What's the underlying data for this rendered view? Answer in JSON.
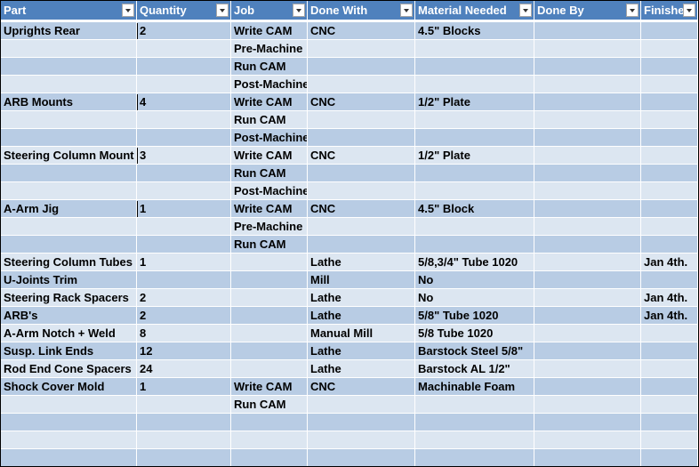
{
  "columns": [
    {
      "label": "Part"
    },
    {
      "label": "Quantity"
    },
    {
      "label": "Job"
    },
    {
      "label": "Done With"
    },
    {
      "label": "Material Needed"
    },
    {
      "label": "Done By"
    },
    {
      "label": "Finished"
    }
  ],
  "rows": [
    [
      "Uprights Rear",
      "2",
      "Write CAM",
      "CNC",
      "4.5\" Blocks",
      "",
      ""
    ],
    [
      "",
      "",
      "Pre-Machine",
      "",
      "",
      "",
      ""
    ],
    [
      "",
      "",
      "Run CAM",
      "",
      "",
      "",
      ""
    ],
    [
      "",
      "",
      "Post-Machine",
      "",
      "",
      "",
      ""
    ],
    [
      "ARB Mounts",
      "4",
      "Write CAM",
      "CNC",
      "1/2\" Plate",
      "",
      ""
    ],
    [
      "",
      "",
      "Run CAM",
      "",
      "",
      "",
      ""
    ],
    [
      "",
      "",
      "Post-Machine",
      "",
      "",
      "",
      ""
    ],
    [
      "Steering Column Mount",
      "3",
      "Write CAM",
      "CNC",
      "1/2\" Plate",
      "",
      ""
    ],
    [
      "",
      "",
      "Run CAM",
      "",
      "",
      "",
      ""
    ],
    [
      "",
      "",
      "Post-Machine",
      "",
      "",
      "",
      ""
    ],
    [
      "A-Arm Jig",
      "1",
      "Write CAM",
      "CNC",
      "4.5\" Block",
      "",
      ""
    ],
    [
      "",
      "",
      "Pre-Machine",
      "",
      "",
      "",
      ""
    ],
    [
      "",
      "",
      "Run CAM",
      "",
      "",
      "",
      ""
    ],
    [
      "Steering Column Tubes",
      "1",
      "",
      "Lathe",
      "5/8,3/4\" Tube 1020",
      "",
      "Jan 4th."
    ],
    [
      "U-Joints Trim",
      "",
      "",
      "Mill",
      "No",
      "",
      ""
    ],
    [
      "Steering Rack Spacers",
      "2",
      "",
      "Lathe",
      "No",
      "",
      "Jan 4th."
    ],
    [
      "ARB's",
      "2",
      "",
      "Lathe",
      "5/8\" Tube 1020",
      "",
      "Jan 4th."
    ],
    [
      "A-Arm Notch + Weld",
      "8",
      "",
      "Manual Mill",
      "5/8 Tube 1020",
      "",
      ""
    ],
    [
      "Susp. Link Ends",
      "12",
      "",
      "Lathe",
      "Barstock Steel 5/8\"",
      "",
      ""
    ],
    [
      "Rod End Cone Spacers",
      "24",
      "",
      "Lathe",
      "Barstock AL 1/2\"",
      "",
      ""
    ],
    [
      "Shock Cover Mold",
      "1",
      "Write CAM",
      "CNC",
      "Machinable Foam",
      "",
      ""
    ],
    [
      "",
      "",
      "Run CAM",
      "",
      "",
      "",
      ""
    ],
    [
      "",
      "",
      "",
      "",
      "",
      "",
      ""
    ],
    [
      "",
      "",
      "",
      "",
      "",
      "",
      ""
    ],
    [
      "",
      "",
      "",
      "",
      "",
      "",
      ""
    ]
  ],
  "qty_marker_rows": [
    0,
    4,
    7,
    10
  ]
}
